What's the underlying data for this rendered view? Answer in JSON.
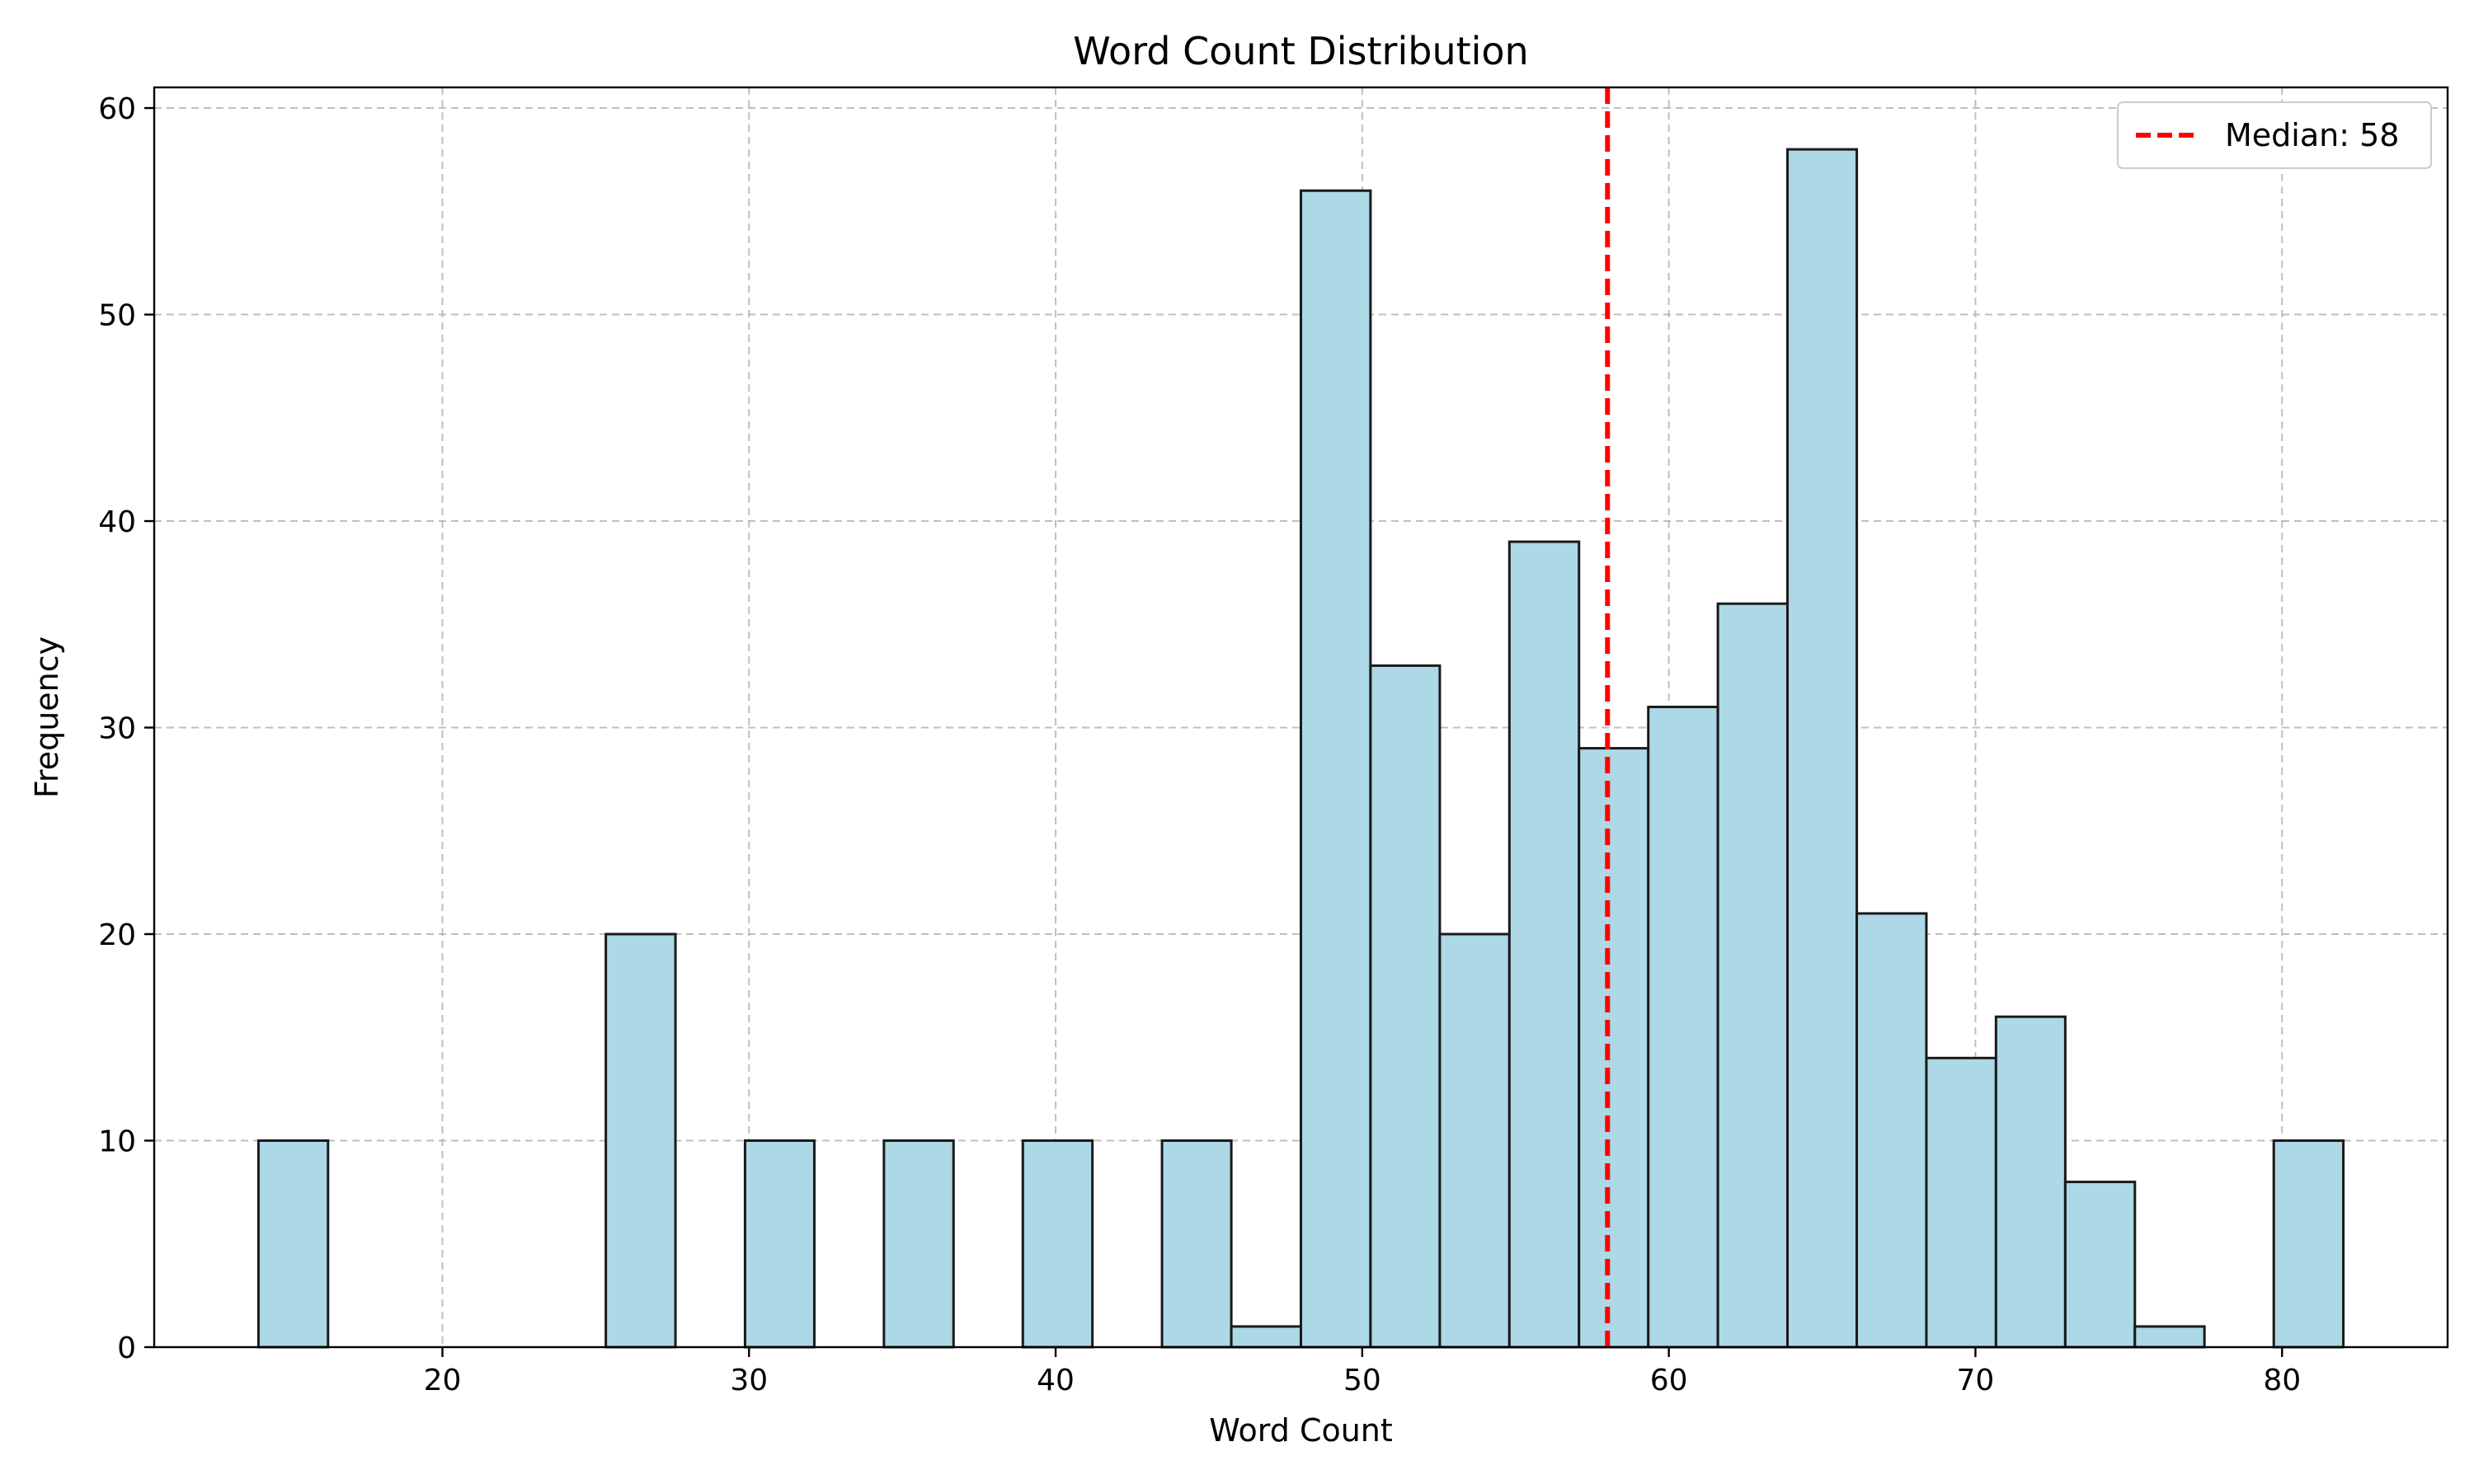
{
  "chart_data": {
    "type": "bar",
    "title": "Word Count Distribution",
    "xlabel": "Word Count",
    "ylabel": "Frequency",
    "xlim": [
      10.6,
      85.4
    ],
    "ylim": [
      0,
      61
    ],
    "x_ticks": [
      20,
      30,
      40,
      50,
      60,
      70,
      80
    ],
    "y_ticks": [
      0,
      10,
      20,
      30,
      40,
      50,
      60
    ],
    "grid": true,
    "bin_edges": [
      14,
      16.27,
      18.53,
      20.8,
      23.07,
      25.33,
      27.6,
      29.87,
      32.13,
      34.4,
      36.67,
      38.93,
      41.2,
      43.47,
      45.73,
      48,
      50.27,
      52.53,
      54.8,
      57.07,
      59.33,
      61.6,
      63.87,
      66.13,
      68.4,
      70.67,
      72.93,
      75.2,
      77.47,
      79.73,
      82
    ],
    "values": [
      10,
      0,
      0,
      0,
      0,
      20,
      0,
      10,
      0,
      10,
      0,
      10,
      0,
      10,
      1,
      56,
      33,
      20,
      39,
      29,
      31,
      36,
      58,
      21,
      14,
      16,
      8,
      1,
      0,
      10
    ],
    "bar_color": "#add8e6",
    "edge_color": "#1a1a1a",
    "median": {
      "value": 58,
      "label": "Median: 58",
      "color": "#ff0000"
    },
    "legend_placement": "top-right"
  }
}
